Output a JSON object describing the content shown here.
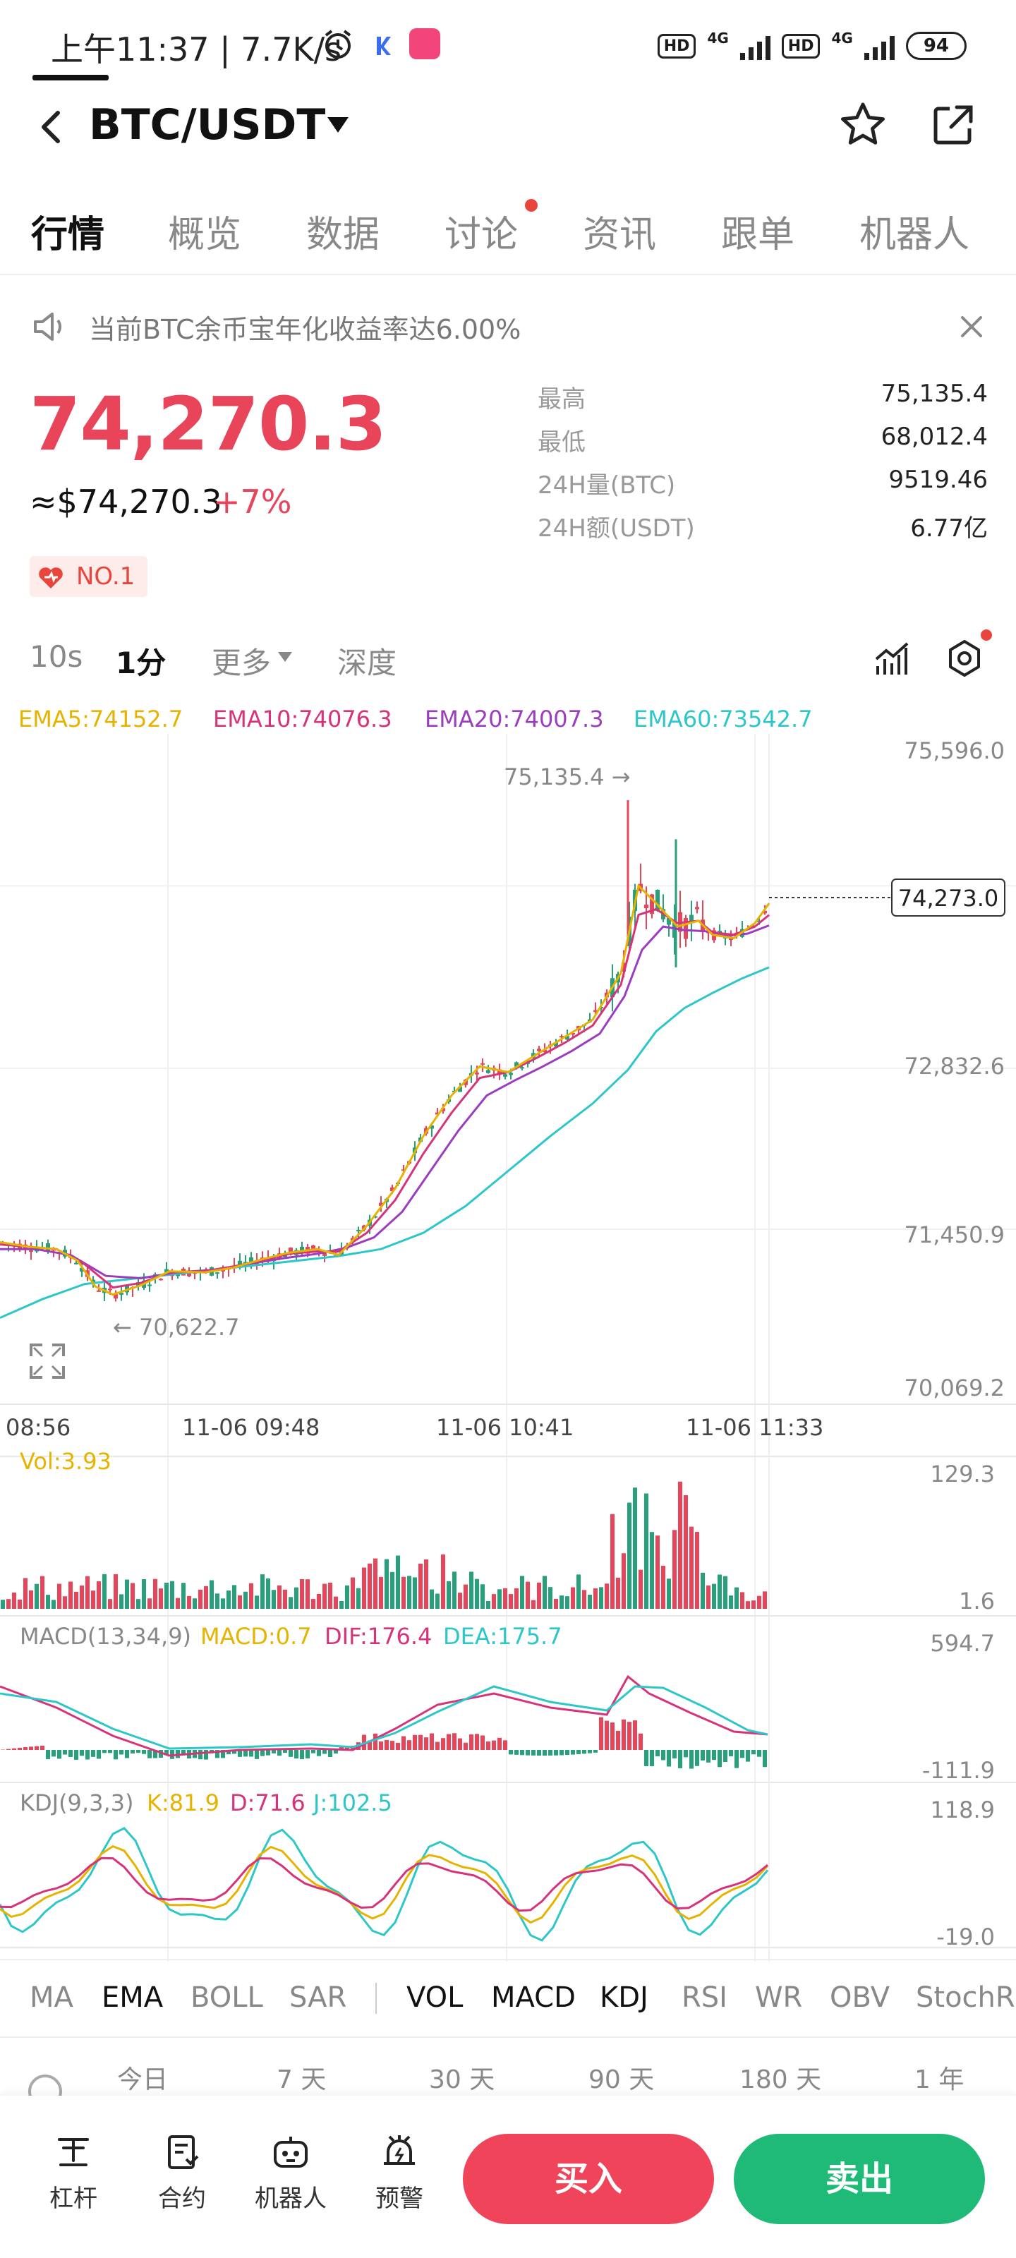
{
  "status_bar": {
    "time": "上午11:37 | 7.7K/s",
    "battery": "94",
    "hd1": "HD",
    "net1": "4G",
    "hd2": "HD",
    "net2": "4G"
  },
  "header": {
    "pair": "BTC/USDT"
  },
  "tabs": [
    {
      "label": "行情",
      "active": true
    },
    {
      "label": "概览"
    },
    {
      "label": "数据"
    },
    {
      "label": "讨论",
      "has_dot": true
    },
    {
      "label": "资讯"
    },
    {
      "label": "跟单"
    },
    {
      "label": "机器人"
    }
  ],
  "notice": {
    "text": "当前BTC余币宝年化收益率达6.00%"
  },
  "price": {
    "last": "74,270.3",
    "usd": "≈$74,270.3",
    "change": "+7%",
    "badge": "NO.1"
  },
  "stats": [
    {
      "label": "最高",
      "value": "75,135.4"
    },
    {
      "label": "最低",
      "value": "68,012.4"
    },
    {
      "label": "24H量(BTC)",
      "value": "9519.46"
    },
    {
      "label": "24H额(USDT)",
      "value": "6.77亿"
    }
  ],
  "timeframes": {
    "s10": "10s",
    "m1": "1分",
    "more": "更多",
    "depth": "深度"
  },
  "ema_legend": {
    "ema5": "EMA5:74152.7",
    "ema10": "EMA10:74076.3",
    "ema20": "EMA20:74007.3",
    "ema60": "EMA60:73542.7"
  },
  "colors": {
    "up": "#e8445a",
    "down": "#26a17b",
    "ema5": "#e6b400",
    "ema10": "#d6337a",
    "ema20": "#9b3dbf",
    "ema60": "#2ec7c9"
  },
  "chart_data": {
    "type": "candlestick",
    "main": {
      "y_axis_labels": [
        "75,596.0",
        "72,832.6",
        "71,450.9",
        "70,069.2"
      ],
      "x_axis_labels": [
        "08:56",
        "11-06 09:48",
        "11-06 10:41",
        "11-06 11:33"
      ],
      "high_marker": "75,135.4 →",
      "low_marker": "← 70,622.7",
      "last_price_tag": "74,273.0",
      "ylim": [
        70069.2,
        75596.0
      ],
      "ema5_path": [
        [
          0,
          71340
        ],
        [
          40,
          71300
        ],
        [
          80,
          71280
        ],
        [
          110,
          71180
        ],
        [
          135,
          70960
        ],
        [
          160,
          70890
        ],
        [
          200,
          70970
        ],
        [
          240,
          71090
        ],
        [
          290,
          71080
        ],
        [
          330,
          71120
        ],
        [
          370,
          71190
        ],
        [
          410,
          71250
        ],
        [
          450,
          71280
        ],
        [
          480,
          71230
        ],
        [
          520,
          71480
        ],
        [
          560,
          71800
        ],
        [
          600,
          72250
        ],
        [
          640,
          72600
        ],
        [
          680,
          72850
        ],
        [
          720,
          72800
        ],
        [
          760,
          72950
        ],
        [
          800,
          73100
        ],
        [
          840,
          73250
        ],
        [
          880,
          73650
        ],
        [
          905,
          74400
        ],
        [
          930,
          74250
        ],
        [
          960,
          74050
        ],
        [
          990,
          74100
        ],
        [
          1010,
          73980
        ],
        [
          1040,
          73950
        ],
        [
          1070,
          74080
        ],
        [
          1090,
          74250
        ]
      ],
      "ema10_path": [
        [
          0,
          71320
        ],
        [
          40,
          71300
        ],
        [
          80,
          71280
        ],
        [
          120,
          71150
        ],
        [
          160,
          70950
        ],
        [
          200,
          70990
        ],
        [
          240,
          71080
        ],
        [
          290,
          71090
        ],
        [
          330,
          71130
        ],
        [
          370,
          71180
        ],
        [
          410,
          71240
        ],
        [
          450,
          71260
        ],
        [
          480,
          71260
        ],
        [
          520,
          71420
        ],
        [
          560,
          71700
        ],
        [
          600,
          72100
        ],
        [
          640,
          72450
        ],
        [
          680,
          72750
        ],
        [
          720,
          72800
        ],
        [
          760,
          72920
        ],
        [
          800,
          73050
        ],
        [
          840,
          73200
        ],
        [
          880,
          73550
        ],
        [
          905,
          74150
        ],
        [
          930,
          74200
        ],
        [
          960,
          74080
        ],
        [
          990,
          74100
        ],
        [
          1010,
          74000
        ],
        [
          1040,
          73980
        ],
        [
          1070,
          74050
        ],
        [
          1090,
          74150
        ]
      ],
      "ema20_path": [
        [
          0,
          71280
        ],
        [
          50,
          71280
        ],
        [
          100,
          71230
        ],
        [
          150,
          71050
        ],
        [
          200,
          71030
        ],
        [
          250,
          71080
        ],
        [
          300,
          71100
        ],
        [
          350,
          71150
        ],
        [
          400,
          71200
        ],
        [
          450,
          71240
        ],
        [
          490,
          71290
        ],
        [
          530,
          71380
        ],
        [
          570,
          71600
        ],
        [
          610,
          71950
        ],
        [
          650,
          72300
        ],
        [
          690,
          72600
        ],
        [
          730,
          72730
        ],
        [
          770,
          72850
        ],
        [
          810,
          72980
        ],
        [
          850,
          73130
        ],
        [
          885,
          73450
        ],
        [
          910,
          73850
        ],
        [
          940,
          74050
        ],
        [
          970,
          74020
        ],
        [
          1000,
          74010
        ],
        [
          1030,
          73970
        ],
        [
          1060,
          73990
        ],
        [
          1090,
          74060
        ]
      ],
      "ema60_path": [
        [
          0,
          70690
        ],
        [
          60,
          70850
        ],
        [
          120,
          70980
        ],
        [
          180,
          71020
        ],
        [
          240,
          71060
        ],
        [
          300,
          71100
        ],
        [
          360,
          71140
        ],
        [
          420,
          71180
        ],
        [
          480,
          71220
        ],
        [
          540,
          71280
        ],
        [
          600,
          71420
        ],
        [
          660,
          71650
        ],
        [
          720,
          71950
        ],
        [
          780,
          72250
        ],
        [
          840,
          72530
        ],
        [
          890,
          72820
        ],
        [
          930,
          73150
        ],
        [
          970,
          73350
        ],
        [
          1010,
          73480
        ],
        [
          1050,
          73600
        ],
        [
          1090,
          73700
        ]
      ]
    },
    "volume": {
      "label": "Vol:3.93",
      "y_axis_labels": [
        "129.3",
        "1.6"
      ]
    },
    "macd": {
      "label": "MACD(13,34,9)",
      "macd": "MACD:0.7",
      "dif": "DIF:176.4",
      "dea": "DEA:175.7",
      "y_axis_labels": [
        "594.7",
        "-111.9"
      ]
    },
    "kdj": {
      "label": "KDJ(9,3,3)",
      "k": "K:81.9",
      "d": "D:71.6",
      "j": "J:102.5",
      "y_axis_labels": [
        "118.9",
        "-19.0"
      ]
    }
  },
  "indicators": [
    {
      "label": "MA"
    },
    {
      "label": "EMA",
      "on": true
    },
    {
      "label": "BOLL"
    },
    {
      "label": "SAR"
    },
    {
      "label": "VOL",
      "on": true
    },
    {
      "label": "MACD",
      "on": true
    },
    {
      "label": "KDJ",
      "on": true
    },
    {
      "label": "RSI"
    },
    {
      "label": "WR"
    },
    {
      "label": "OBV"
    },
    {
      "label": "StochRSI"
    }
  ],
  "ranges": [
    "今日",
    "7 天",
    "30 天",
    "90 天",
    "180 天",
    "1 年"
  ],
  "bottom_nav": [
    {
      "label": "杠杆"
    },
    {
      "label": "合约"
    },
    {
      "label": "机器人"
    },
    {
      "label": "预警"
    }
  ],
  "actions": {
    "buy": "买入",
    "sell": "卖出"
  }
}
